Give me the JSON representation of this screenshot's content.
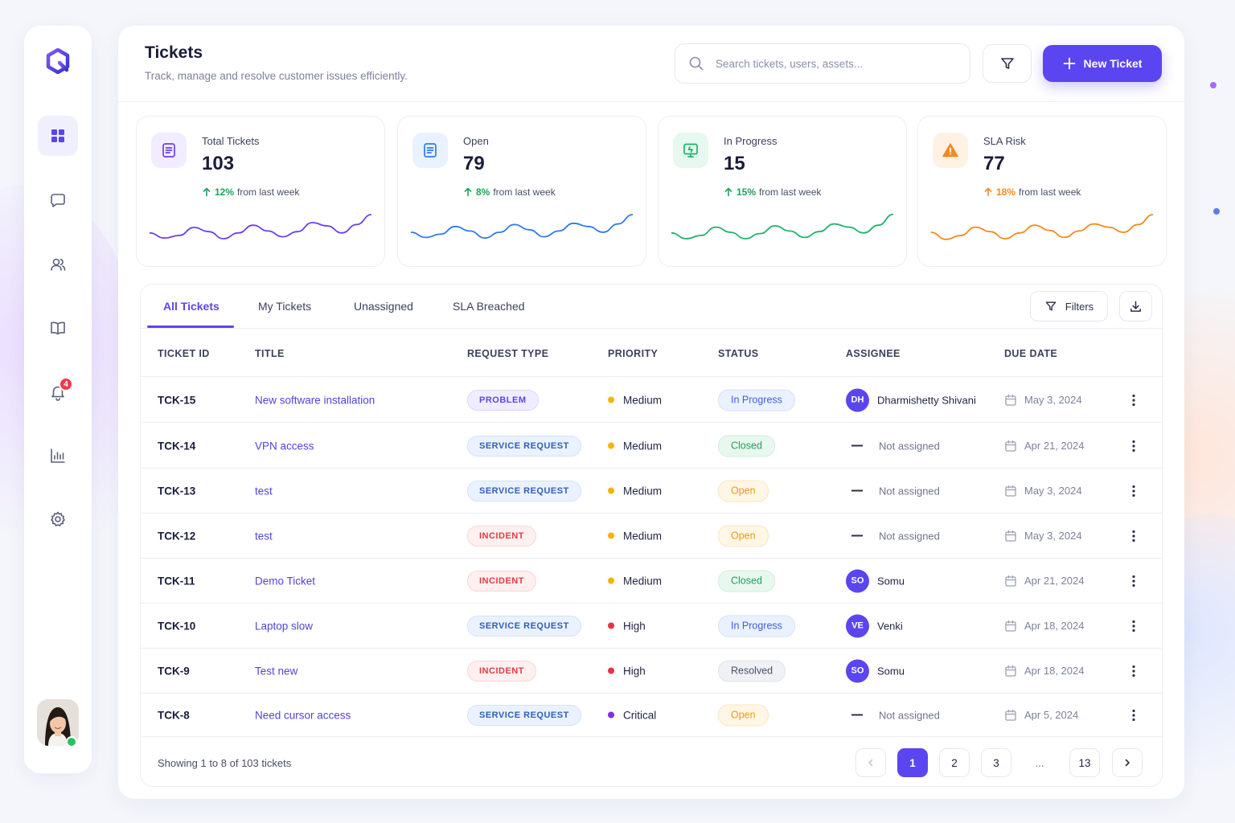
{
  "header": {
    "title": "Tickets",
    "subtitle": "Track, manage and resolve customer issues efficiently.",
    "search_placeholder": "Search tickets, users, assets...",
    "new_ticket_label": "New Ticket"
  },
  "sidebar": {
    "items": [
      {
        "name": "dashboard",
        "icon": "grid-icon",
        "active": true
      },
      {
        "name": "messages",
        "icon": "chat-icon",
        "active": false
      },
      {
        "name": "users",
        "icon": "users-icon",
        "active": false
      },
      {
        "name": "knowledge-base",
        "icon": "book-icon",
        "active": false
      },
      {
        "name": "notifications",
        "icon": "bell-icon",
        "active": false,
        "badge": "4"
      },
      {
        "name": "reports",
        "icon": "bar-chart-icon",
        "active": false
      },
      {
        "name": "settings",
        "icon": "gear-icon",
        "active": false
      }
    ]
  },
  "stats": [
    {
      "label": "Total Tickets",
      "value": "103",
      "pct": "12%",
      "suffix": "from last week",
      "color": "#6d3ff0",
      "icon": "document-icon"
    },
    {
      "label": "Open",
      "value": "79",
      "pct": "8%",
      "suffix": "from last week",
      "color": "#2f7be8",
      "icon": "document-icon"
    },
    {
      "label": "In Progress",
      "value": "15",
      "pct": "15%",
      "suffix": "from last week",
      "color": "#1fb36b",
      "icon": "monitor-icon"
    },
    {
      "label": "SLA Risk",
      "value": "77",
      "pct": "18%",
      "suffix": "from last week",
      "color": "#f28a1e",
      "icon": "warning-icon"
    }
  ],
  "tabs": [
    "All Tickets",
    "My Tickets",
    "Unassigned",
    "SLA Breached"
  ],
  "active_tab": "All Tickets",
  "filters_label": "Filters",
  "columns": [
    "TICKET ID",
    "TITLE",
    "REQUEST TYPE",
    "PRIORITY",
    "STATUS",
    "ASSIGNEE",
    "DUE DATE"
  ],
  "tickets": [
    {
      "id": "TCK-15",
      "title": "New software installation",
      "type": "PROBLEM",
      "type_class": "problem",
      "priority": "Medium",
      "priority_color": "#f5b40d",
      "status": "In Progress",
      "status_class": "progress",
      "assignee_initials": "DH",
      "assignee": "Dharmishetty Shivani",
      "due": "May 3, 2024"
    },
    {
      "id": "TCK-14",
      "title": "VPN access",
      "type": "SERVICE REQUEST",
      "type_class": "service",
      "priority": "Medium",
      "priority_color": "#f5b40d",
      "status": "Closed",
      "status_class": "closed",
      "assignee_initials": "",
      "assignee": "Not assigned",
      "due": "Apr 21, 2024"
    },
    {
      "id": "TCK-13",
      "title": "test",
      "type": "SERVICE REQUEST",
      "type_class": "service",
      "priority": "Medium",
      "priority_color": "#f5b40d",
      "status": "Open",
      "status_class": "open",
      "assignee_initials": "",
      "assignee": "Not assigned",
      "due": "May 3, 2024"
    },
    {
      "id": "TCK-12",
      "title": "test",
      "type": "INCIDENT",
      "type_class": "incident",
      "priority": "Medium",
      "priority_color": "#f5b40d",
      "status": "Open",
      "status_class": "open",
      "assignee_initials": "",
      "assignee": "Not assigned",
      "due": "May 3, 2024"
    },
    {
      "id": "TCK-11",
      "title": "Demo Ticket",
      "type": "INCIDENT",
      "type_class": "incident",
      "priority": "Medium",
      "priority_color": "#f5b40d",
      "status": "Closed",
      "status_class": "closed",
      "assignee_initials": "SO",
      "assignee": "Somu",
      "due": "Apr 21, 2024"
    },
    {
      "id": "TCK-10",
      "title": "Laptop slow",
      "type": "SERVICE REQUEST",
      "type_class": "service",
      "priority": "High",
      "priority_color": "#e83344",
      "status": "In Progress",
      "status_class": "progress",
      "assignee_initials": "VE",
      "assignee": "Venki",
      "due": "Apr 18, 2024"
    },
    {
      "id": "TCK-9",
      "title": "Test new",
      "type": "INCIDENT",
      "type_class": "incident",
      "priority": "High",
      "priority_color": "#e83344",
      "status": "Resolved",
      "status_class": "resolved",
      "assignee_initials": "SO",
      "assignee": "Somu",
      "due": "Apr 18, 2024"
    },
    {
      "id": "TCK-8",
      "title": "Need cursor access",
      "type": "SERVICE REQUEST",
      "type_class": "service",
      "priority": "Critical",
      "priority_color": "#7b2ff0",
      "status": "Open",
      "status_class": "open",
      "assignee_initials": "",
      "assignee": "Not assigned",
      "due": "Apr 5, 2024"
    }
  ],
  "pagination": {
    "showing": "Showing 1 to 8 of 103 tickets",
    "pages": [
      "1",
      "2",
      "3",
      "...",
      "13"
    ],
    "current": "1"
  },
  "colors": {
    "accent": "#5b45f0"
  }
}
